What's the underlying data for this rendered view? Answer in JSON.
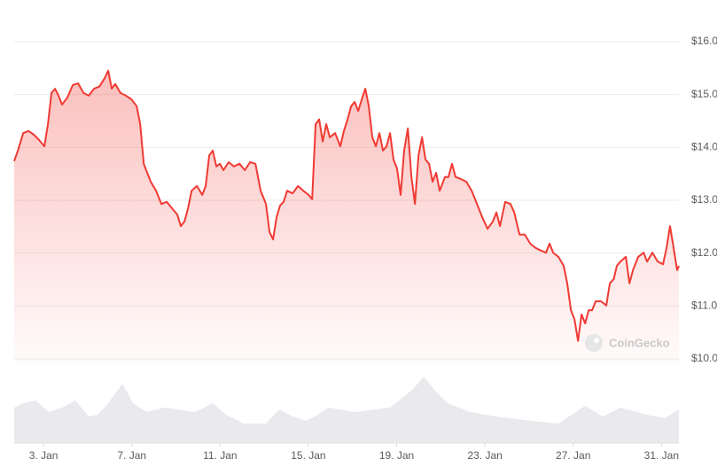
{
  "chart_data": [
    {
      "type": "line",
      "annotations": [
        "CoinGecko"
      ],
      "color": "#f03a33",
      "grid": true,
      "xlim": [
        1.67,
        31.79
      ],
      "ylim": [
        10,
        16
      ],
      "xticks": [
        {
          "value": 3,
          "label": "3. Jan"
        },
        {
          "value": 7,
          "label": "7. Jan"
        },
        {
          "value": 11,
          "label": "11. Jan"
        },
        {
          "value": 15,
          "label": "15. Jan"
        },
        {
          "value": 19,
          "label": "19. Jan"
        },
        {
          "value": 23,
          "label": "23. Jan"
        },
        {
          "value": 27,
          "label": "27. Jan"
        },
        {
          "value": 31,
          "label": "31. Jan"
        }
      ],
      "yticks": [
        {
          "value": 10,
          "label": "$10.0"
        },
        {
          "value": 11,
          "label": "$11.0"
        },
        {
          "value": 12,
          "label": "$12.0"
        },
        {
          "value": 13,
          "label": "$13.0"
        },
        {
          "value": 14,
          "label": "$14.0"
        },
        {
          "value": 15,
          "label": "$15.0"
        },
        {
          "value": 16,
          "label": "$16.0"
        }
      ],
      "x": [
        1.67,
        1.84,
        2.08,
        2.32,
        2.56,
        2.8,
        3.04,
        3.2,
        3.36,
        3.52,
        3.68,
        3.84,
        4.08,
        4.33,
        4.57,
        4.81,
        5.05,
        5.29,
        5.53,
        5.77,
        5.93,
        6.09,
        6.25,
        6.49,
        6.73,
        6.98,
        7.22,
        7.38,
        7.54,
        7.7,
        7.86,
        8.1,
        8.34,
        8.58,
        8.82,
        9.06,
        9.22,
        9.39,
        9.55,
        9.71,
        9.95,
        10.19,
        10.35,
        10.51,
        10.67,
        10.83,
        10.99,
        11.15,
        11.39,
        11.63,
        11.88,
        12.12,
        12.36,
        12.6,
        12.84,
        13.08,
        13.24,
        13.4,
        13.56,
        13.72,
        13.88,
        14.04,
        14.29,
        14.53,
        14.77,
        15.01,
        15.17,
        15.33,
        15.49,
        15.65,
        15.81,
        15.97,
        16.21,
        16.45,
        16.61,
        16.78,
        16.94,
        17.1,
        17.26,
        17.42,
        17.58,
        17.74,
        17.9,
        18.06,
        18.22,
        18.38,
        18.54,
        18.7,
        18.86,
        19.02,
        19.18,
        19.34,
        19.51,
        19.67,
        19.83,
        19.99,
        20.15,
        20.31,
        20.47,
        20.63,
        20.79,
        20.95,
        21.19,
        21.35,
        21.51,
        21.67,
        21.92,
        22.16,
        22.4,
        22.64,
        22.88,
        23.12,
        23.36,
        23.52,
        23.68,
        23.92,
        24.16,
        24.33,
        24.57,
        24.81,
        25.05,
        25.29,
        25.53,
        25.77,
        25.93,
        26.09,
        26.33,
        26.57,
        26.73,
        26.9,
        27.06,
        27.22,
        27.38,
        27.54,
        27.7,
        27.86,
        28.02,
        28.26,
        28.5,
        28.66,
        28.84,
        28.98,
        29.14,
        29.39,
        29.55,
        29.71,
        29.95,
        30.19,
        30.35,
        30.59,
        30.83,
        31.07,
        31.23,
        31.39,
        31.55,
        31.71,
        31.79
      ],
      "values": [
        13.74,
        13.94,
        14.27,
        14.31,
        14.24,
        14.14,
        14.02,
        14.44,
        15.03,
        15.11,
        14.98,
        14.81,
        14.94,
        15.18,
        15.21,
        15.03,
        14.98,
        15.11,
        15.15,
        15.31,
        15.45,
        15.11,
        15.2,
        15.03,
        14.98,
        14.91,
        14.78,
        14.44,
        13.69,
        13.52,
        13.35,
        13.18,
        12.93,
        12.97,
        12.85,
        12.73,
        12.51,
        12.6,
        12.85,
        13.18,
        13.27,
        13.1,
        13.27,
        13.85,
        13.94,
        13.64,
        13.69,
        13.57,
        13.72,
        13.64,
        13.69,
        13.57,
        13.72,
        13.69,
        13.18,
        12.93,
        12.4,
        12.26,
        12.68,
        12.9,
        12.97,
        13.18,
        13.13,
        13.27,
        13.18,
        13.1,
        13.02,
        14.44,
        14.53,
        14.11,
        14.44,
        14.19,
        14.27,
        14.02,
        14.31,
        14.53,
        14.78,
        14.86,
        14.69,
        14.91,
        15.11,
        14.78,
        14.19,
        14.02,
        14.27,
        13.94,
        14.02,
        14.27,
        13.77,
        13.6,
        13.1,
        13.94,
        14.36,
        13.44,
        12.93,
        13.85,
        14.19,
        13.77,
        13.69,
        13.35,
        13.52,
        13.18,
        13.44,
        13.44,
        13.69,
        13.44,
        13.4,
        13.35,
        13.18,
        12.93,
        12.68,
        12.46,
        12.6,
        12.77,
        12.51,
        12.97,
        12.93,
        12.77,
        12.35,
        12.35,
        12.18,
        12.1,
        12.05,
        12.01,
        12.18,
        12.01,
        11.93,
        11.76,
        11.43,
        10.92,
        10.75,
        10.34,
        10.84,
        10.67,
        10.92,
        10.92,
        11.09,
        11.09,
        11.01,
        11.43,
        11.51,
        11.76,
        11.84,
        11.93,
        11.43,
        11.68,
        11.93,
        12.01,
        11.84,
        12.01,
        11.84,
        11.79,
        12.1,
        12.51,
        12.1,
        11.68,
        11.76
      ]
    },
    {
      "type": "area",
      "color": "#e9e9ee",
      "x": [
        1.67,
        2.08,
        2.64,
        3.24,
        3.84,
        4.45,
        5.05,
        5.45,
        5.93,
        6.57,
        7.06,
        7.66,
        8.46,
        9.06,
        9.87,
        10.67,
        11.27,
        12.08,
        13.08,
        13.68,
        14.29,
        14.89,
        15.29,
        15.89,
        17.1,
        18.7,
        19.71,
        20.23,
        20.71,
        21.31,
        22.32,
        23.52,
        25.13,
        26.33,
        27.54,
        28.34,
        29.14,
        30.35,
        31.15,
        31.79
      ],
      "values": [
        40,
        45,
        48,
        35,
        40,
        48,
        30,
        32,
        45,
        67,
        45,
        35,
        40,
        38,
        35,
        45,
        32,
        22,
        22,
        38,
        30,
        25,
        30,
        40,
        35,
        40,
        60,
        75,
        60,
        45,
        35,
        30,
        25,
        22,
        42,
        30,
        40,
        32,
        28,
        38
      ]
    }
  ]
}
